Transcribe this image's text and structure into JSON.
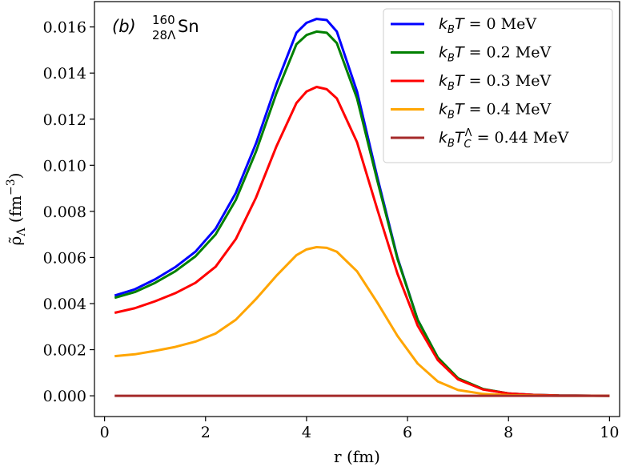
{
  "chart_data": {
    "type": "line",
    "annotation": {
      "label": "(b)",
      "mass_number": "160",
      "sub_number": "28Λ",
      "element": "Sn"
    },
    "xlabel": "r (fm)",
    "ylabel": {
      "symbol": "ρ̃",
      "subscript": "Λ",
      "unit_open": " (fm",
      "unit_exp": "−3",
      "unit_close": ")"
    },
    "xlim": [
      -0.2,
      10.2
    ],
    "ylim": [
      -0.0009,
      0.0171
    ],
    "xticks": [
      0,
      2,
      4,
      6,
      8,
      10
    ],
    "xtick_labels": [
      "0",
      "2",
      "4",
      "6",
      "8",
      "10"
    ],
    "yticks": [
      0.0,
      0.002,
      0.004,
      0.006,
      0.008,
      0.01,
      0.012,
      0.014,
      0.016
    ],
    "ytick_labels": [
      "0.000",
      "0.002",
      "0.004",
      "0.006",
      "0.008",
      "0.010",
      "0.012",
      "0.014",
      "0.016"
    ],
    "grid": false,
    "legend_position": "top-right",
    "series": [
      {
        "name": "k_B T = 0 MeV",
        "legend": {
          "main": "k",
          "sub": "B",
          "var": "T",
          "sup": "",
          "rest": " = 0 MeV"
        },
        "color": "#0000ff",
        "x": [
          0.2,
          0.6,
          1.0,
          1.4,
          1.8,
          2.2,
          2.6,
          3.0,
          3.4,
          3.8,
          4.0,
          4.2,
          4.4,
          4.6,
          5.0,
          5.4,
          5.8,
          6.2,
          6.6,
          7.0,
          7.5,
          8.0,
          8.5,
          9.0,
          10.0
        ],
        "y": [
          0.00435,
          0.00462,
          0.00505,
          0.00558,
          0.00625,
          0.00725,
          0.0088,
          0.01095,
          0.0135,
          0.01575,
          0.01618,
          0.01635,
          0.0163,
          0.0158,
          0.0132,
          0.0095,
          0.006,
          0.0033,
          0.00165,
          0.00075,
          0.00028,
          0.0001,
          4e-05,
          1e-05,
          0.0
        ]
      },
      {
        "name": "k_B T = 0.2 MeV",
        "legend": {
          "main": "k",
          "sub": "B",
          "var": "T",
          "sup": "",
          "rest": " = 0.2 MeV"
        },
        "color": "#008000",
        "x": [
          0.2,
          0.6,
          1.0,
          1.4,
          1.8,
          2.2,
          2.6,
          3.0,
          3.4,
          3.8,
          4.0,
          4.2,
          4.4,
          4.6,
          5.0,
          5.4,
          5.8,
          6.2,
          6.6,
          7.0,
          7.5,
          8.0,
          8.5,
          9.0,
          10.0
        ],
        "y": [
          0.00425,
          0.0045,
          0.0049,
          0.0054,
          0.00605,
          0.007,
          0.0085,
          0.0106,
          0.0131,
          0.01525,
          0.01565,
          0.0158,
          0.01575,
          0.0153,
          0.0129,
          0.00935,
          0.00595,
          0.0033,
          0.00166,
          0.00076,
          0.00029,
          0.0001,
          4e-05,
          1e-05,
          0.0
        ]
      },
      {
        "name": "k_B T = 0.3 MeV",
        "legend": {
          "main": "k",
          "sub": "B",
          "var": "T",
          "sup": "",
          "rest": " = 0.3 MeV"
        },
        "color": "#ff0000",
        "x": [
          0.2,
          0.6,
          1.0,
          1.4,
          1.8,
          2.2,
          2.6,
          3.0,
          3.4,
          3.8,
          4.0,
          4.2,
          4.4,
          4.6,
          5.0,
          5.4,
          5.8,
          6.2,
          6.6,
          7.0,
          7.5,
          8.0,
          8.5,
          9.0,
          10.0
        ],
        "y": [
          0.0036,
          0.0038,
          0.0041,
          0.00445,
          0.0049,
          0.0056,
          0.0068,
          0.0086,
          0.0108,
          0.0127,
          0.0132,
          0.0134,
          0.0133,
          0.0129,
          0.011,
          0.0081,
          0.0053,
          0.00305,
          0.00155,
          0.00071,
          0.00027,
          0.0001,
          4e-05,
          1e-05,
          0.0
        ]
      },
      {
        "name": "k_B T = 0.4 MeV",
        "legend": {
          "main": "k",
          "sub": "B",
          "var": "T",
          "sup": "",
          "rest": " = 0.4 MeV"
        },
        "color": "#ffa500",
        "x": [
          0.2,
          0.6,
          1.0,
          1.4,
          1.8,
          2.2,
          2.6,
          3.0,
          3.4,
          3.8,
          4.0,
          4.2,
          4.4,
          4.6,
          5.0,
          5.4,
          5.8,
          6.2,
          6.6,
          7.0,
          7.5,
          8.0,
          8.5,
          9.0,
          10.0
        ],
        "y": [
          0.00172,
          0.0018,
          0.00195,
          0.00212,
          0.00235,
          0.0027,
          0.0033,
          0.0042,
          0.0052,
          0.0061,
          0.00635,
          0.00645,
          0.00642,
          0.00625,
          0.0054,
          0.00405,
          0.0026,
          0.0014,
          0.00062,
          0.00025,
          8e-05,
          3e-05,
          1e-05,
          0.0,
          0.0
        ]
      },
      {
        "name": "k_B T_C^Λ = 0.44 MeV",
        "legend": {
          "main": "k",
          "sub": "B",
          "var": "T",
          "sup": "Λ",
          "subC": "C",
          "rest": " = 0.44 MeV"
        },
        "color": "#a52a2a",
        "x": [
          0.2,
          10.0
        ],
        "y": [
          0.0,
          0.0
        ]
      }
    ]
  }
}
